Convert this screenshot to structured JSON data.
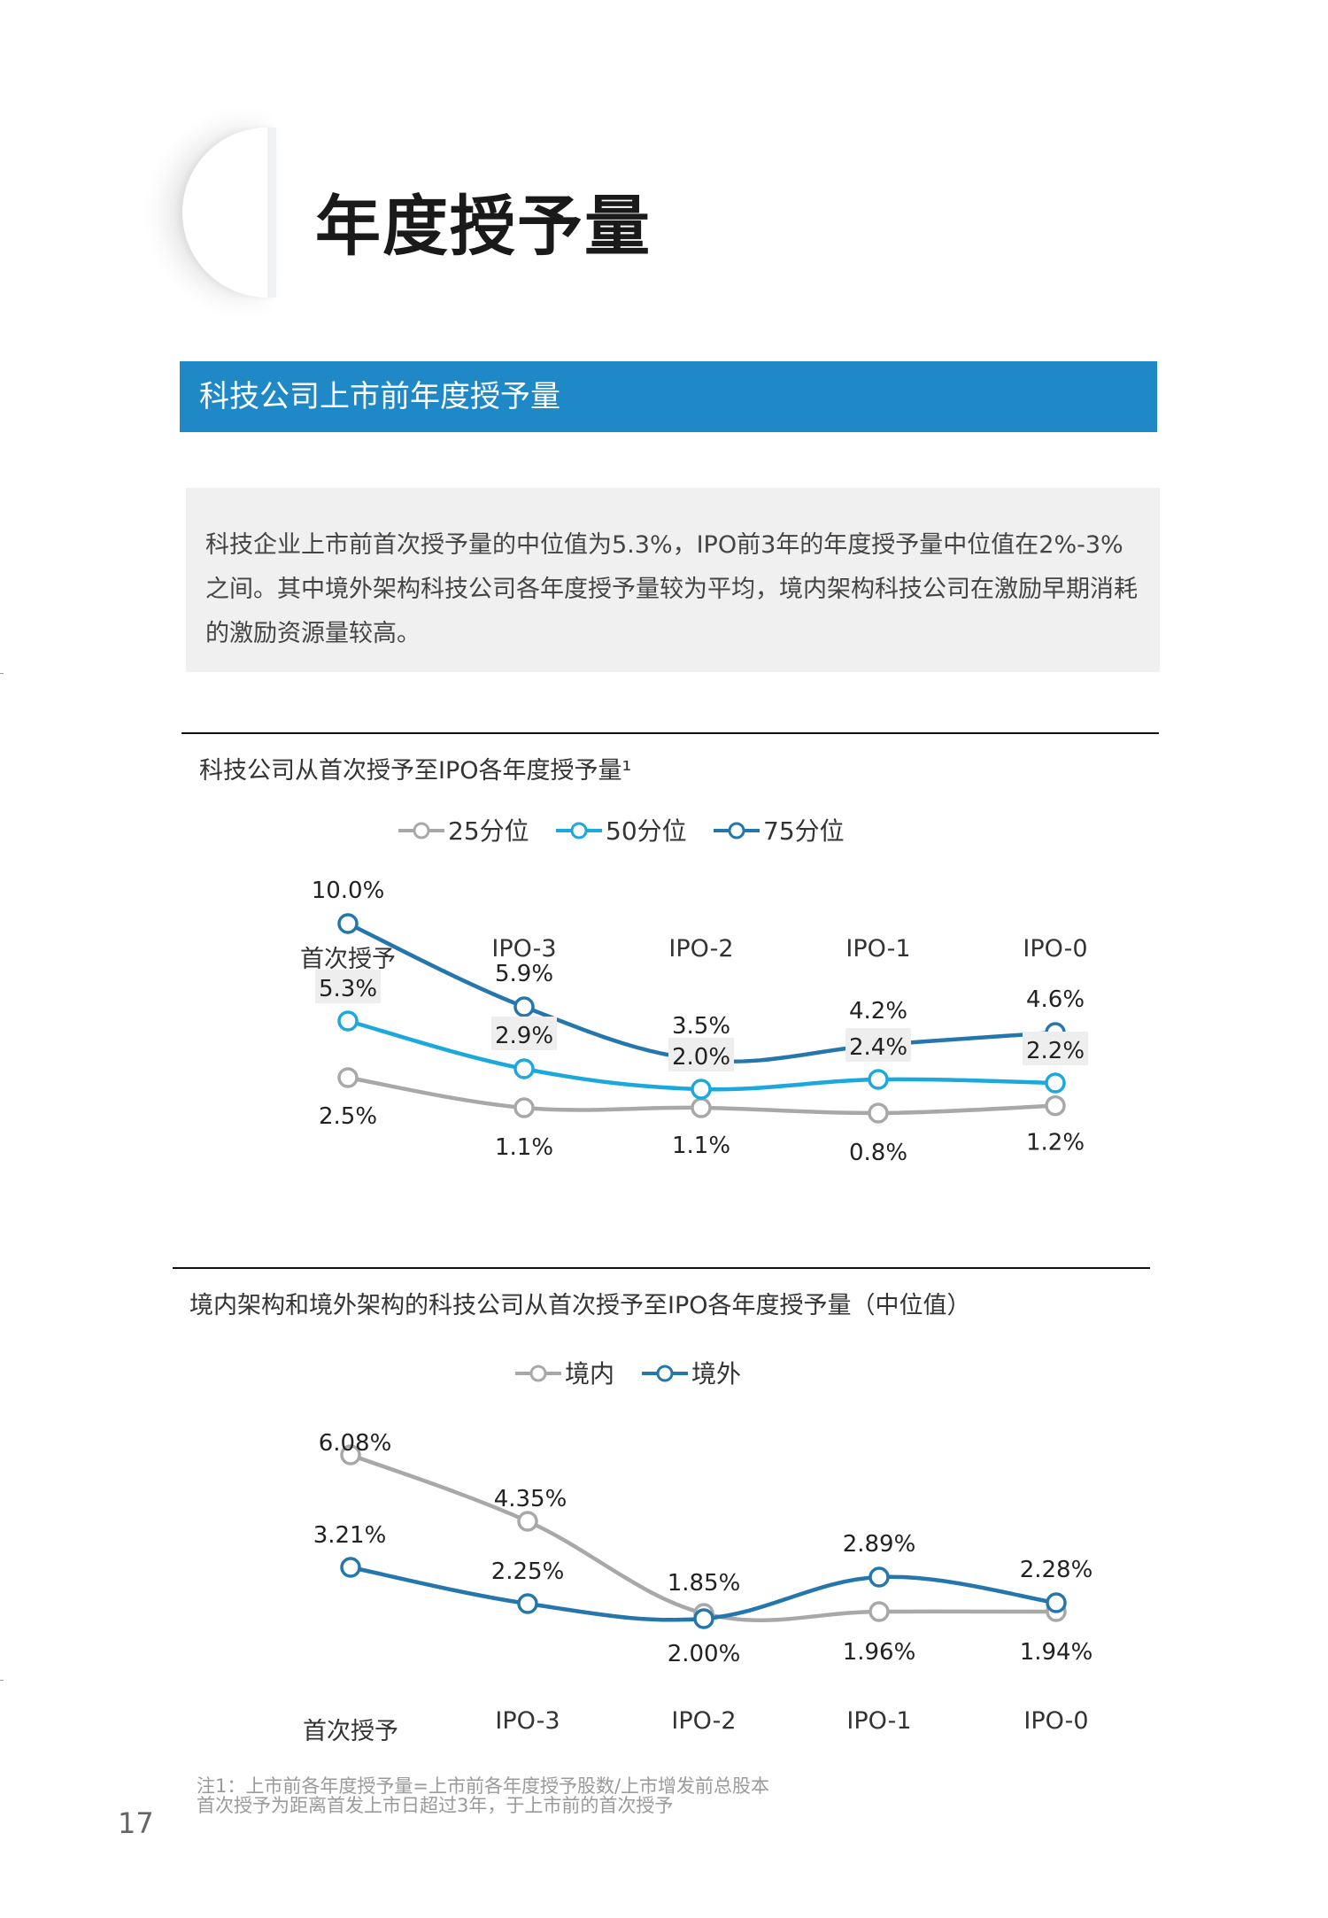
{
  "page": {
    "title": "年度授予量",
    "section_title": "科技公司上市前年度授予量",
    "summary": "科技企业上市前首次授予量的中位值为5.3%，IPO前3年的年度授予量中位值在2%-3%之间。其中境外架构科技公司各年度授予量较为平均，境内架构科技公司在激励早期消耗的激励资源量较高。",
    "footnote_line1": "注1：上市前各年度授予量=上市前各年度授予股数/上市增发前总股本",
    "footnote_line2": "首次授予为距离首发上市日超过3年，于上市前的首次授予",
    "page_number": "17",
    "colors": {
      "section_bar": "#1f88c6",
      "series_gray": "#a8a8a8",
      "series_light_blue": "#1ba8dd",
      "series_dark_blue": "#2476ad"
    }
  },
  "chart_data": [
    {
      "type": "line",
      "title": "科技公司从首次授予至IPO各年度授予量¹",
      "categories": [
        "首次授予",
        "IPO-3",
        "IPO-2",
        "IPO-1",
        "IPO-0"
      ],
      "series": [
        {
          "name": "25分位",
          "color": "#a8a8a8",
          "values": [
            2.5,
            1.1,
            1.1,
            0.8,
            1.2
          ],
          "labels": [
            "2.5%",
            "1.1%",
            "1.1%",
            "0.8%",
            "1.2%"
          ]
        },
        {
          "name": "50分位",
          "color": "#1ba8dd",
          "values": [
            5.3,
            2.9,
            2.0,
            2.4,
            2.2
          ],
          "labels": [
            "5.3%",
            "2.9%",
            "2.0%",
            "2.4%",
            "2.2%"
          ]
        },
        {
          "name": "75分位",
          "color": "#2476ad",
          "values": [
            10.0,
            5.9,
            3.5,
            4.2,
            4.6
          ],
          "labels": [
            "10.0%",
            "5.9%",
            "3.5%",
            "4.2%",
            "4.6%"
          ]
        }
      ],
      "legend": "top-center",
      "grid": false
    },
    {
      "type": "line",
      "title": "境内架构和境外架构的科技公司从首次授予至IPO各年度授予量（中位值）",
      "categories": [
        "首次授予",
        "IPO-3",
        "IPO-2",
        "IPO-1",
        "IPO-0"
      ],
      "series": [
        {
          "name": "境内",
          "color": "#a8a8a8",
          "values": [
            6.08,
            4.35,
            1.85,
            1.96,
            1.94
          ],
          "labels": [
            "6.08%",
            "4.35%",
            "1.85%",
            "1.96%",
            "1.94%"
          ]
        },
        {
          "name": "境外",
          "color": "#2476ad",
          "values": [
            3.21,
            2.25,
            2.0,
            2.89,
            2.28
          ],
          "labels": [
            "3.21%",
            "2.25%",
            "2.00%",
            "2.89%",
            "2.28%"
          ]
        }
      ],
      "legend": "top-center",
      "grid": false
    }
  ]
}
